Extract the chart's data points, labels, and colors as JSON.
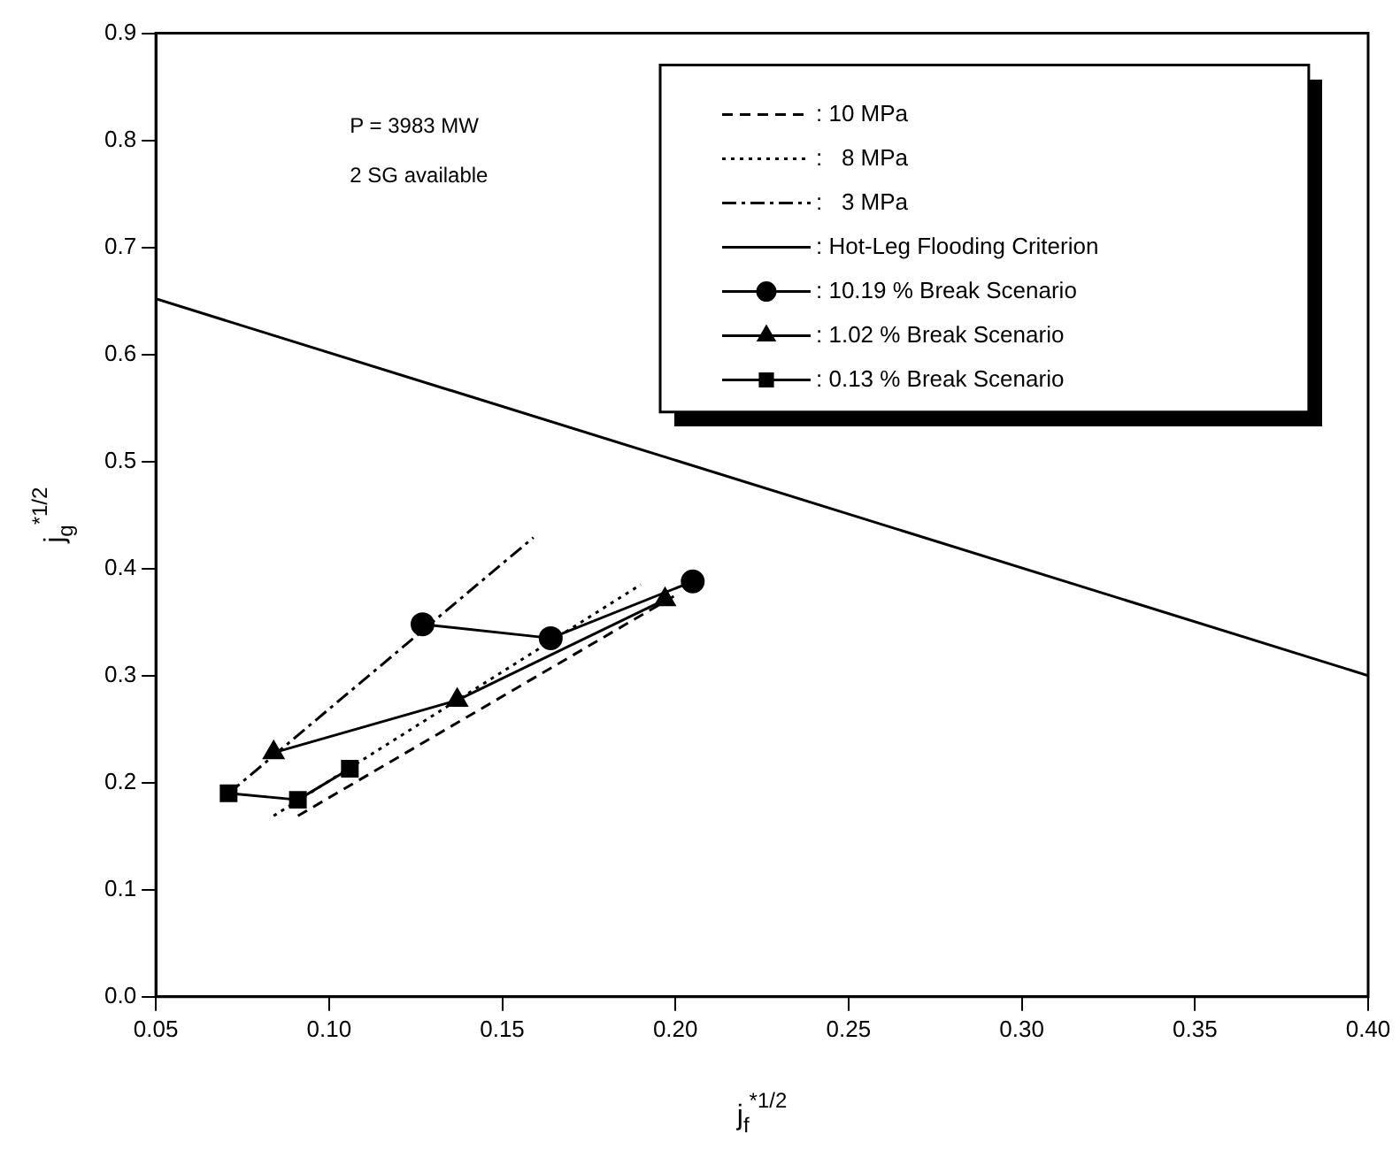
{
  "chart_data": {
    "type": "line",
    "xlabel": "j$_{f}$$^{*1/2}$",
    "ylabel": "j$_{g}$$^{*1/2}$",
    "xlim": [
      0.05,
      0.4
    ],
    "xticks": [
      {
        "value": 0.05,
        "label": "0.05"
      },
      {
        "value": 0.1,
        "label": "0.10"
      },
      {
        "value": 0.15,
        "label": "0.15"
      },
      {
        "value": 0.2,
        "label": "0.20"
      },
      {
        "value": 0.25,
        "label": "0.25"
      },
      {
        "value": 0.3,
        "label": "0.30"
      },
      {
        "value": 0.35,
        "label": "0.35"
      },
      {
        "value": 0.4,
        "label": "0.40"
      }
    ],
    "ylim": [
      0,
      0.9
    ],
    "yticks": [
      {
        "value": 0,
        "label": "0.0"
      },
      {
        "value": 0.1,
        "label": "0.1"
      },
      {
        "value": 0.2,
        "label": "0.2"
      },
      {
        "value": 0.3,
        "label": "0.3"
      },
      {
        "value": 0.4,
        "label": "0.4"
      },
      {
        "value": 0.5,
        "label": "0.5"
      },
      {
        "value": 0.6,
        "label": "0.6"
      },
      {
        "value": 0.7,
        "label": "0.7"
      },
      {
        "value": 0.8,
        "label": "0.8"
      },
      {
        "value": 0.9,
        "label": "0.9"
      }
    ],
    "grid": false,
    "legend": "top right",
    "annotations": [
      "P = 3983 MW",
      "2 SG available"
    ],
    "series": [
      {
        "name": ": 10 MPa",
        "color": "#000000",
        "line_style": "dashed",
        "x": [
          0.091,
          0.2
        ],
        "values": [
          0.169,
          0.375
        ]
      },
      {
        "name": ":   8 MPa",
        "color": "#000000",
        "line_style": "dotted",
        "x": [
          0.084,
          0.19
        ],
        "values": [
          0.169,
          0.385
        ]
      },
      {
        "name": ":   3 MPa",
        "color": "#000000",
        "line_style": "dashdot",
        "x": [
          0.071,
          0.159
        ],
        "values": [
          0.19,
          0.429
        ]
      },
      {
        "name": ": Hot-Leg Flooding Criterion",
        "color": "#000000",
        "line_style": "solid",
        "x": [
          0.05,
          0.4
        ],
        "values": [
          0.652,
          0.3
        ]
      },
      {
        "name": ": 10.19 % Break Scenario",
        "color": "#000000",
        "line_style": "solid",
        "marker": "circle",
        "x": [
          0.127,
          0.164,
          0.205
        ],
        "values": [
          0.348,
          0.335,
          0.388
        ]
      },
      {
        "name": ": 1.02 % Break Scenario",
        "color": "#000000",
        "line_style": "solid",
        "marker": "triangle",
        "x": [
          0.084,
          0.137,
          0.197
        ],
        "values": [
          0.228,
          0.277,
          0.371
        ]
      },
      {
        "name": ": 0.13 % Break Scenario",
        "color": "#000000",
        "line_style": "solid",
        "marker": "square",
        "x": [
          0.071,
          0.091,
          0.106
        ],
        "values": [
          0.19,
          0.184,
          0.213
        ]
      }
    ]
  }
}
